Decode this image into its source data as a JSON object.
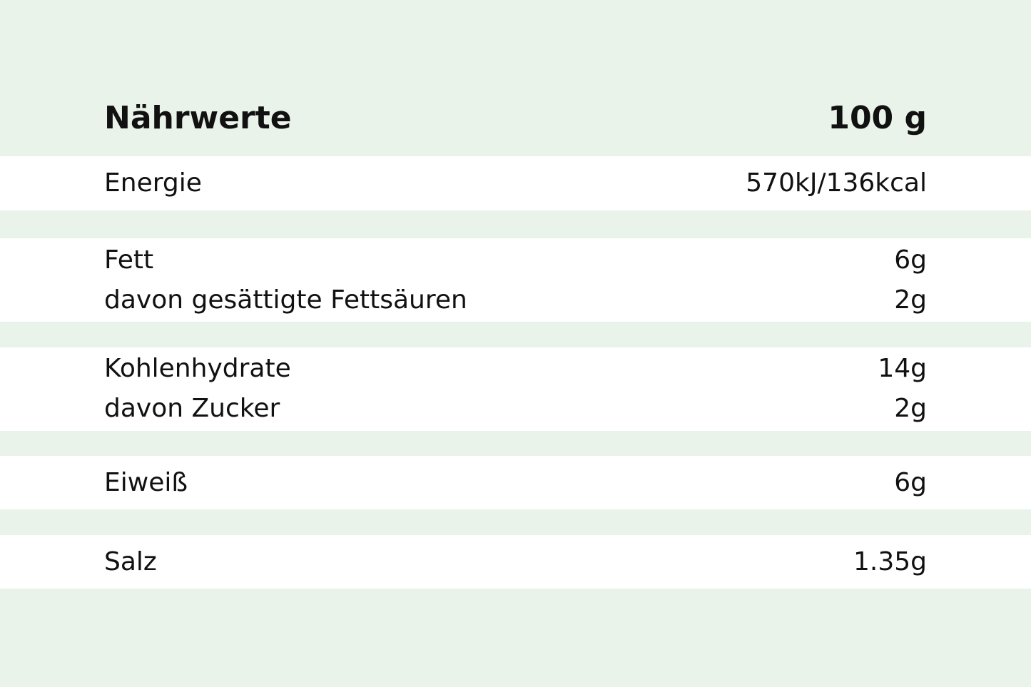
{
  "header": {
    "label": "Nährwerte",
    "value": "100 g"
  },
  "colors": {
    "background": "#e9f3ea",
    "row_band": "#ffffff",
    "text": "#111111"
  },
  "groups": [
    {
      "rows": [
        {
          "label": "Energie",
          "value": "570kJ/136kcal"
        }
      ]
    },
    {
      "rows": [
        {
          "label": "Fett",
          "value": "6g"
        },
        {
          "label": "davon gesättigte Fettsäuren",
          "value": "2g"
        }
      ]
    },
    {
      "rows": [
        {
          "label": "Kohlenhydrate",
          "value": "14g"
        },
        {
          "label": "davon Zucker",
          "value": "2g"
        }
      ]
    },
    {
      "rows": [
        {
          "label": "Eiweiß",
          "value": "6g"
        }
      ]
    },
    {
      "rows": [
        {
          "label": "Salz",
          "value": "1.35g"
        }
      ]
    }
  ]
}
